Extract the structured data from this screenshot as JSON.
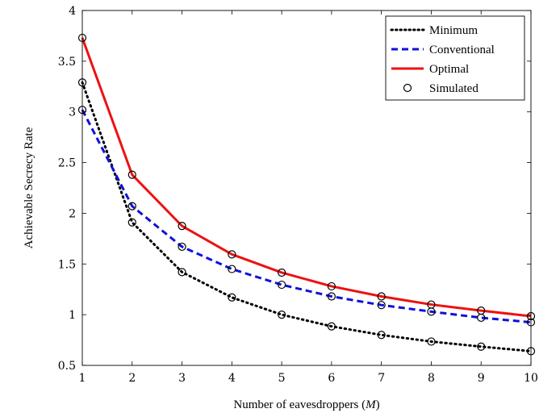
{
  "chart_data": {
    "type": "line",
    "xlabel": "Number of eavesdroppers (M)",
    "xlabel_parts": {
      "prefix": "Number of eavesdroppers (",
      "var": "M",
      "suffix": ")"
    },
    "ylabel": "Achievable Secrecy Rate",
    "xlim": [
      1,
      10
    ],
    "ylim": [
      0.5,
      4
    ],
    "xticks": [
      1,
      2,
      3,
      4,
      5,
      6,
      7,
      8,
      9,
      10
    ],
    "yticks": [
      0.5,
      1,
      1.5,
      2,
      2.5,
      3,
      3.5,
      4
    ],
    "ytick_labels": [
      "0.5",
      "1",
      "1.5",
      "2",
      "2.5",
      "3",
      "3.5",
      "4"
    ],
    "grid": false,
    "legend_position": "top-right",
    "x": [
      1,
      2,
      3,
      4,
      5,
      6,
      7,
      8,
      9,
      10
    ],
    "series": [
      {
        "name": "Minimum",
        "style": "dotted",
        "color": "#000000",
        "values": [
          3.29,
          1.91,
          1.42,
          1.17,
          1.0,
          0.885,
          0.8,
          0.735,
          0.685,
          0.64
        ]
      },
      {
        "name": "Conventional",
        "style": "dashed",
        "color": "#1010dd",
        "values": [
          3.02,
          2.07,
          1.67,
          1.45,
          1.295,
          1.18,
          1.095,
          1.03,
          0.97,
          0.925
        ]
      },
      {
        "name": "Optimal",
        "style": "solid",
        "color": "#ee1111",
        "values": [
          3.73,
          2.38,
          1.875,
          1.595,
          1.415,
          1.28,
          1.18,
          1.1,
          1.04,
          0.985
        ]
      }
    ],
    "markers": {
      "name": "Simulated",
      "shape": "circle",
      "color": "#000000"
    }
  }
}
